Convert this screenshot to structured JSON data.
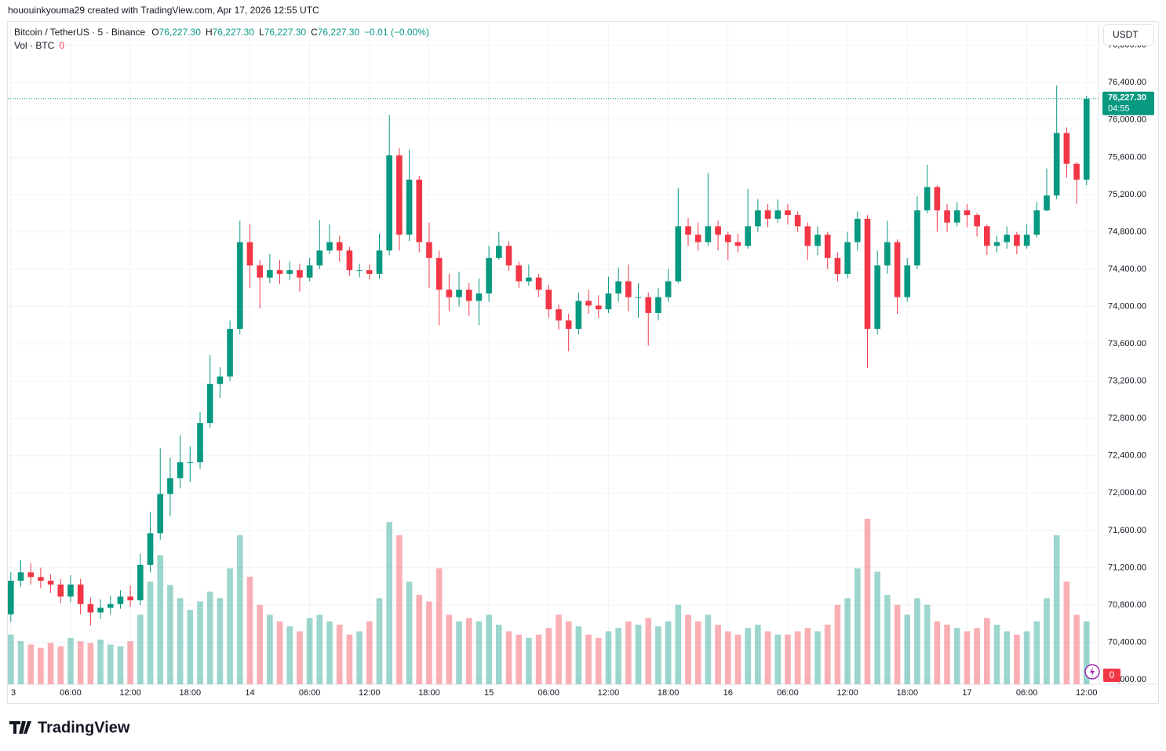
{
  "header": {
    "credit": "hououinkyouma29 created with TradingView.com, Apr 17, 2026 12:55 UTC",
    "symbol": "Bitcoin / TetherUS · 5 · Binance",
    "ohlc": [
      {
        "key": "O",
        "value": "76,227.30"
      },
      {
        "key": "H",
        "value": "76,227.30"
      },
      {
        "key": "L",
        "value": "76,227.30"
      },
      {
        "key": "C",
        "value": "76,227.30"
      }
    ],
    "change": "−0.01 (−0.00%)",
    "volume_label": "Vol · BTC",
    "volume_value": "0",
    "currency": "USDT",
    "brand": "TradingView"
  },
  "chart_data": {
    "type": "candlestick",
    "x": [
      0,
      1,
      2,
      3,
      4,
      5,
      6,
      7,
      8,
      9,
      10,
      11,
      12,
      13,
      14,
      15,
      16,
      17,
      18,
      19,
      20,
      21,
      22,
      23,
      24,
      25,
      26,
      27,
      28,
      29,
      30,
      31,
      32,
      33,
      34,
      35,
      36,
      37,
      38,
      39,
      40,
      41,
      42,
      43,
      44,
      45,
      46,
      47,
      48,
      49,
      50,
      51,
      52,
      53,
      54,
      55,
      56,
      57,
      58,
      59,
      60,
      61,
      62,
      63,
      64,
      65,
      66,
      67,
      68,
      69,
      70,
      71,
      72,
      73,
      74,
      75,
      76,
      77,
      78,
      79,
      80,
      81,
      82,
      83,
      84,
      85,
      86,
      87,
      88,
      89,
      90,
      91,
      92,
      93,
      94,
      95,
      96,
      97,
      98,
      99,
      100,
      101,
      102,
      103,
      104,
      105,
      106,
      107,
      108
    ],
    "open": [
      70700,
      71060,
      71150,
      71100,
      71060,
      71020,
      70890,
      71020,
      70810,
      70720,
      70770,
      70810,
      70890,
      70850,
      71230,
      71570,
      71990,
      72160,
      72330,
      72330,
      72750,
      73170,
      73250,
      73760,
      74690,
      74440,
      74310,
      74390,
      74350,
      74390,
      74310,
      74440,
      74600,
      74690,
      74600,
      74390,
      74390,
      74350,
      74600,
      75620,
      74770,
      75360,
      74690,
      74520,
      74180,
      74100,
      74180,
      74060,
      74140,
      74520,
      74650,
      74440,
      74270,
      74310,
      74180,
      73970,
      73850,
      73760,
      74060,
      74010,
      73970,
      74140,
      74270,
      74100,
      74100,
      73930,
      74100,
      74270,
      74860,
      74770,
      74690,
      74860,
      74770,
      74690,
      74650,
      74860,
      75030,
      74940,
      75030,
      74980,
      74860,
      74650,
      74770,
      74520,
      74350,
      74690,
      74940,
      73760,
      74440,
      74690,
      74100,
      74440,
      75030,
      75280,
      75030,
      74900,
      75030,
      74980,
      74860,
      74650,
      74690,
      74770,
      74650,
      74770,
      75030,
      75190,
      75860,
      75530,
      75360
    ],
    "high": [
      71150,
      71280,
      71250,
      71200,
      71130,
      71080,
      71120,
      71080,
      70880,
      70860,
      70900,
      70960,
      71010,
      71350,
      71800,
      72480,
      72380,
      72620,
      72500,
      72870,
      73480,
      73350,
      73850,
      74920,
      74880,
      74500,
      74560,
      74500,
      74480,
      74460,
      74520,
      74930,
      74880,
      74760,
      74640,
      74460,
      74450,
      74780,
      76050,
      75700,
      75680,
      75400,
      74900,
      74600,
      74350,
      74370,
      74250,
      74300,
      74650,
      74800,
      74700,
      74480,
      74450,
      74350,
      74230,
      74020,
      73920,
      74150,
      74180,
      74120,
      74320,
      74420,
      74450,
      74250,
      74150,
      74200,
      74400,
      75270,
      74950,
      74900,
      75430,
      74920,
      74800,
      74780,
      75260,
      75150,
      75100,
      75150,
      75100,
      75020,
      74900,
      74860,
      74800,
      74580,
      74800,
      75020,
      74980,
      74600,
      74920,
      74720,
      74520,
      75180,
      75520,
      75300,
      75100,
      75120,
      75100,
      75000,
      74880,
      74760,
      74860,
      74800,
      74880,
      75120,
      75480,
      76370,
      75920,
      75550,
      76260
    ],
    "low": [
      70620,
      71000,
      71020,
      70980,
      70930,
      70820,
      70830,
      70700,
      70580,
      70650,
      70700,
      70760,
      70780,
      70800,
      71150,
      71500,
      71750,
      72050,
      72120,
      72260,
      72700,
      73020,
      73200,
      73700,
      74200,
      73980,
      74250,
      74240,
      74280,
      74160,
      74270,
      74400,
      74560,
      74480,
      74330,
      74310,
      74290,
      74300,
      74550,
      74600,
      74700,
      74580,
      74200,
      73800,
      73950,
      74000,
      73900,
      73800,
      74050,
      74500,
      74380,
      74200,
      74220,
      74100,
      73880,
      73750,
      73520,
      73700,
      73920,
      73880,
      73930,
      74050,
      73950,
      73880,
      73580,
      73850,
      74050,
      74250,
      74650,
      74600,
      74650,
      74600,
      74500,
      74580,
      74620,
      74800,
      74850,
      74900,
      74880,
      74800,
      74500,
      74550,
      74400,
      74270,
      74300,
      74600,
      73340,
      73700,
      74350,
      73920,
      74050,
      74400,
      75000,
      74800,
      74800,
      74860,
      74850,
      74750,
      74550,
      74580,
      74620,
      74560,
      74620,
      74740,
      75020,
      75150,
      75380,
      75100,
      75300
    ],
    "close": [
      71060,
      71150,
      71100,
      71060,
      71020,
      70890,
      71020,
      70810,
      70720,
      70770,
      70810,
      70890,
      70850,
      71230,
      71570,
      71990,
      72160,
      72330,
      72330,
      72750,
      73170,
      73250,
      73760,
      74690,
      74440,
      74310,
      74390,
      74350,
      74390,
      74310,
      74440,
      74600,
      74690,
      74600,
      74390,
      74390,
      74350,
      74600,
      75620,
      74770,
      75360,
      74690,
      74520,
      74180,
      74100,
      74180,
      74060,
      74140,
      74520,
      74650,
      74440,
      74270,
      74310,
      74180,
      73970,
      73850,
      73760,
      74060,
      74010,
      73970,
      74140,
      74270,
      74100,
      74100,
      73930,
      74100,
      74270,
      74860,
      74770,
      74690,
      74860,
      74770,
      74690,
      74650,
      74860,
      75030,
      74940,
      75030,
      74980,
      74860,
      74650,
      74770,
      74520,
      74350,
      74690,
      74940,
      73760,
      74440,
      74690,
      74100,
      74440,
      75030,
      75280,
      75030,
      74900,
      75030,
      74980,
      74860,
      74650,
      74690,
      74770,
      74650,
      74770,
      75030,
      75190,
      75860,
      75530,
      75360,
      76227.3
    ],
    "volume": [
      300,
      260,
      240,
      220,
      250,
      230,
      280,
      260,
      250,
      270,
      240,
      230,
      260,
      420,
      620,
      780,
      600,
      520,
      450,
      500,
      560,
      520,
      700,
      900,
      650,
      480,
      420,
      380,
      350,
      320,
      400,
      420,
      380,
      360,
      300,
      320,
      380,
      520,
      980,
      900,
      620,
      540,
      500,
      700,
      420,
      380,
      400,
      380,
      420,
      360,
      320,
      300,
      280,
      300,
      340,
      420,
      380,
      350,
      300,
      280,
      320,
      340,
      380,
      360,
      400,
      350,
      380,
      480,
      420,
      380,
      420,
      360,
      320,
      300,
      340,
      360,
      320,
      300,
      300,
      320,
      340,
      320,
      360,
      480,
      520,
      700,
      1000,
      680,
      540,
      480,
      420,
      520,
      480,
      380,
      360,
      340,
      320,
      340,
      400,
      360,
      320,
      300,
      320,
      380,
      520,
      900,
      620,
      420,
      380
    ],
    "up_color": "#089981",
    "down_color": "#f23645",
    "xlim": [
      -0.3,
      109.2
    ],
    "xticks": [
      {
        "value": 0,
        "label": "3"
      },
      {
        "value": 6,
        "label": "06:00"
      },
      {
        "value": 12,
        "label": "12:00"
      },
      {
        "value": 18,
        "label": "18:00"
      },
      {
        "value": 24,
        "label": "14"
      },
      {
        "value": 30,
        "label": "06:00"
      },
      {
        "value": 36,
        "label": "12:00"
      },
      {
        "value": 42,
        "label": "18:00"
      },
      {
        "value": 48,
        "label": "15"
      },
      {
        "value": 54,
        "label": "06:00"
      },
      {
        "value": 60,
        "label": "12:00"
      },
      {
        "value": 66,
        "label": "18:00"
      },
      {
        "value": 72,
        "label": "16"
      },
      {
        "value": 78,
        "label": "06:00"
      },
      {
        "value": 84,
        "label": "12:00"
      },
      {
        "value": 90,
        "label": "18:00"
      },
      {
        "value": 96,
        "label": "17"
      },
      {
        "value": 102,
        "label": "06:00"
      },
      {
        "value": 108,
        "label": "12:00"
      }
    ],
    "ylim": [
      69950,
      77050
    ],
    "yticks": [
      {
        "value": 70000,
        "label": "70,000.00"
      },
      {
        "value": 70400,
        "label": "70,400.00"
      },
      {
        "value": 70800,
        "label": "70,800.00"
      },
      {
        "value": 71200,
        "label": "71,200.00"
      },
      {
        "value": 71600,
        "label": "71,600.00"
      },
      {
        "value": 72000,
        "label": "72,000.00"
      },
      {
        "value": 72400,
        "label": "72,400.00"
      },
      {
        "value": 72800,
        "label": "72,800.00"
      },
      {
        "value": 73200,
        "label": "73,200.00"
      },
      {
        "value": 73600,
        "label": "73,600.00"
      },
      {
        "value": 74000,
        "label": "74,000.00"
      },
      {
        "value": 74400,
        "label": "74,400.00"
      },
      {
        "value": 74800,
        "label": "74,800.00"
      },
      {
        "value": 75200,
        "label": "75,200.00"
      },
      {
        "value": 75600,
        "label": "75,600.00"
      },
      {
        "value": 76000,
        "label": "76,000.00"
      },
      {
        "value": 76400,
        "label": "76,400.00"
      },
      {
        "value": 76800,
        "label": "76,800.00"
      }
    ],
    "y2lim": [
      0,
      4000
    ],
    "grid": true,
    "last_price": {
      "value": 76227.3,
      "label": "76,227.30",
      "countdown": "04:55"
    }
  }
}
